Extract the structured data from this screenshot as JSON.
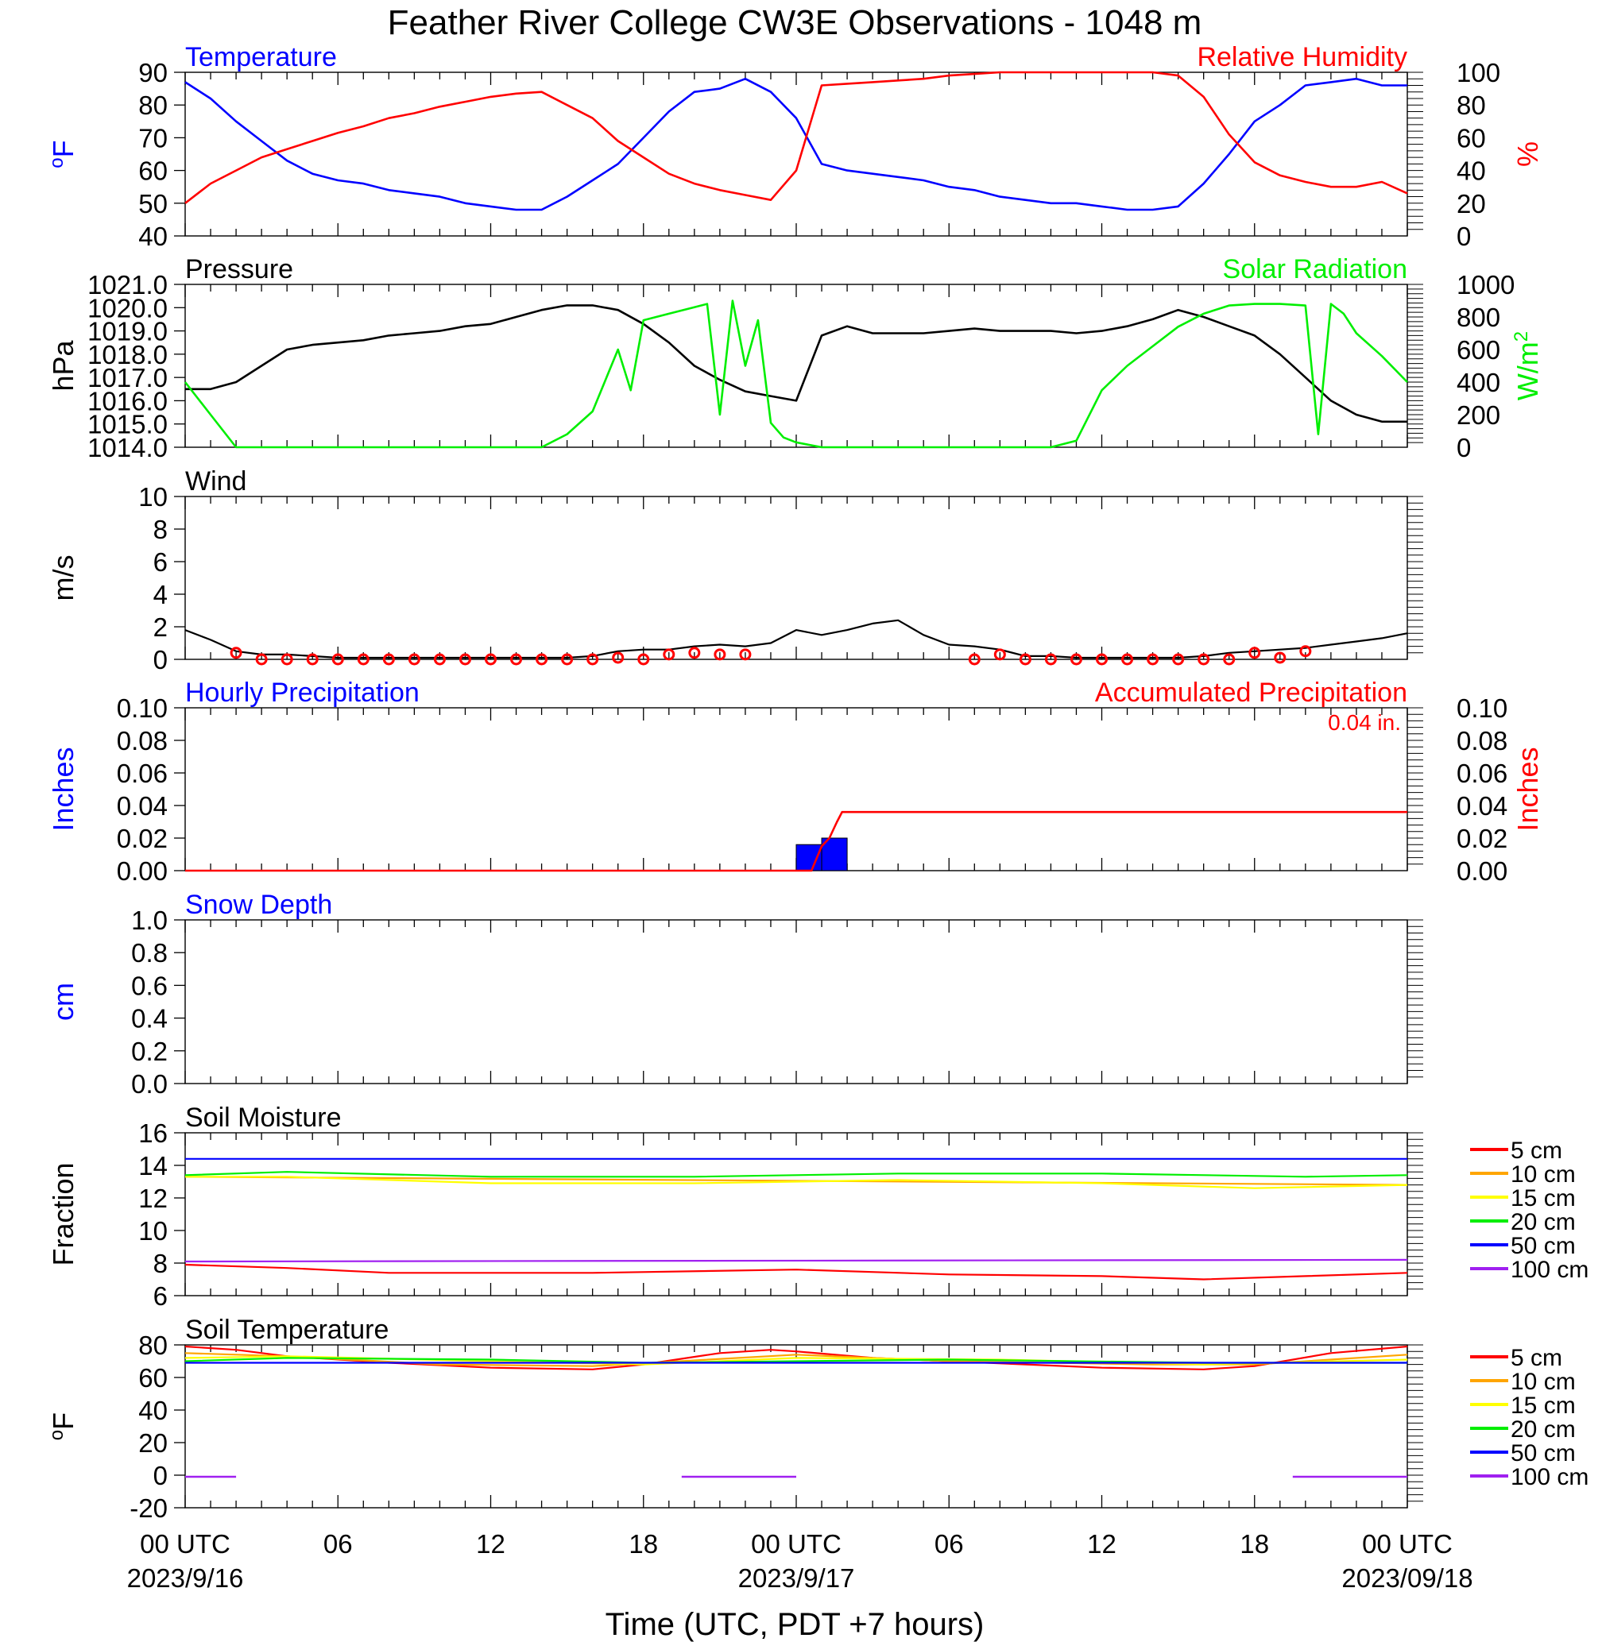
{
  "title": "Feather River College CW3E Observations - 1048 m",
  "xaxis": {
    "label": "Time (UTC, PDT +7 hours)",
    "tick_labels": [
      "00 UTC",
      "06",
      "12",
      "18",
      "00 UTC",
      "06",
      "12",
      "18",
      "00 UTC"
    ],
    "date_labels": [
      "2023/9/16",
      "2023/9/17",
      "2023/09/18"
    ]
  },
  "colors": {
    "blue": "#0000ff",
    "red": "#ff0000",
    "green": "#00ee00",
    "black": "#000000",
    "orange": "#ffa500",
    "yellow": "#ffff00",
    "purple": "#a020f0"
  },
  "soil_legend": [
    "5 cm",
    "10 cm",
    "15 cm",
    "20 cm",
    "50 cm",
    "100 cm"
  ],
  "chart_data": [
    {
      "type": "line",
      "title_left": "Temperature",
      "title_right": "Relative Humidity",
      "ylabel_left": "oF",
      "ylabel_right": "%",
      "ylim_left": [
        40,
        90
      ],
      "ylim_right": [
        0,
        100
      ],
      "yticks_left": [
        "40",
        "50",
        "60",
        "70",
        "80",
        "90"
      ],
      "yticks_right": [
        "0",
        "20",
        "40",
        "60",
        "80",
        "100"
      ],
      "xlim_hours": [
        0,
        48
      ],
      "series": [
        {
          "name": "Temperature",
          "axis": "left",
          "color": "blue",
          "x": [
            0,
            1,
            2,
            3,
            4,
            5,
            6,
            7,
            8,
            9,
            10,
            11,
            12,
            13,
            14,
            15,
            16,
            17,
            18,
            19,
            20,
            21,
            22,
            23,
            24,
            25,
            26,
            27,
            28,
            29,
            30,
            31,
            32,
            33,
            34,
            35,
            36,
            37,
            38,
            39,
            40,
            41,
            42,
            43,
            44,
            45,
            46,
            47,
            48
          ],
          "y": [
            87,
            82,
            75,
            69,
            63,
            59,
            57,
            56,
            54,
            53,
            52,
            50,
            49,
            48,
            48,
            52,
            57,
            62,
            70,
            78,
            84,
            85,
            88,
            84,
            76,
            62,
            60,
            59,
            58,
            57,
            55,
            54,
            52,
            51,
            50,
            50,
            49,
            48,
            48,
            49,
            56,
            65,
            75,
            80,
            86,
            87,
            88,
            86,
            86
          ]
        },
        {
          "name": "Relative Humidity",
          "axis": "right",
          "color": "red",
          "x": [
            0,
            1,
            2,
            3,
            4,
            5,
            6,
            7,
            8,
            9,
            10,
            11,
            12,
            13,
            14,
            15,
            16,
            17,
            18,
            19,
            20,
            21,
            22,
            23,
            24,
            25,
            26,
            27,
            28,
            29,
            30,
            31,
            32,
            33,
            34,
            35,
            36,
            37,
            38,
            39,
            40,
            41,
            42,
            43,
            44,
            45,
            46,
            47,
            48
          ],
          "y": [
            20,
            32,
            40,
            48,
            53,
            58,
            63,
            67,
            72,
            75,
            79,
            82,
            85,
            87,
            88,
            80,
            72,
            58,
            48,
            38,
            32,
            28,
            25,
            22,
            40,
            92,
            93,
            94,
            95,
            96,
            98,
            99,
            100,
            100,
            100,
            100,
            100,
            100,
            100,
            98,
            85,
            62,
            45,
            37,
            33,
            30,
            30,
            33,
            26
          ]
        }
      ]
    },
    {
      "type": "line",
      "title_left": "Pressure",
      "title_right": "Solar Radiation",
      "ylabel_left": "hPa",
      "ylabel_right": "W/m2",
      "ylim_left": [
        1014,
        1021
      ],
      "ylim_right": [
        0,
        1000
      ],
      "yticks_left": [
        "1014.0",
        "1015.0",
        "1016.0",
        "1017.0",
        "1018.0",
        "1019.0",
        "1020.0",
        "1021.0"
      ],
      "yticks_right": [
        "0",
        "200",
        "400",
        "600",
        "800",
        "1000"
      ],
      "series": [
        {
          "name": "Pressure",
          "axis": "left",
          "color": "black",
          "x": [
            0,
            1,
            2,
            3,
            4,
            5,
            6,
            7,
            8,
            9,
            10,
            11,
            12,
            13,
            14,
            15,
            16,
            17,
            18,
            19,
            20,
            21,
            22,
            23,
            24,
            25,
            26,
            27,
            28,
            29,
            30,
            31,
            32,
            33,
            34,
            35,
            36,
            37,
            38,
            39,
            40,
            41,
            42,
            43,
            44,
            45,
            46,
            47,
            48
          ],
          "y": [
            1016.5,
            1016.5,
            1016.8,
            1017.5,
            1018.2,
            1018.4,
            1018.5,
            1018.6,
            1018.8,
            1018.9,
            1019.0,
            1019.2,
            1019.3,
            1019.6,
            1019.9,
            1020.1,
            1020.1,
            1019.9,
            1019.3,
            1018.5,
            1017.5,
            1016.9,
            1016.4,
            1016.2,
            1016.0,
            1018.8,
            1019.2,
            1018.9,
            1018.9,
            1018.9,
            1019.0,
            1019.1,
            1019.0,
            1019.0,
            1019.0,
            1018.9,
            1019.0,
            1019.2,
            1019.5,
            1019.9,
            1019.6,
            1019.2,
            1018.8,
            1018.0,
            1017.0,
            1016.0,
            1015.4,
            1015.1,
            1015.1
          ]
        },
        {
          "name": "Solar Radiation",
          "axis": "right",
          "color": "green",
          "x": [
            0,
            1,
            2,
            3,
            4,
            5,
            6,
            7,
            8,
            9,
            10,
            11,
            12,
            13,
            14,
            15,
            16,
            17,
            17.5,
            18,
            19,
            20,
            20.5,
            21,
            21.5,
            22,
            22.5,
            23,
            23.5,
            24,
            25,
            26,
            27,
            28,
            29,
            30,
            31,
            32,
            33,
            34,
            35,
            36,
            37,
            38,
            39,
            40,
            41,
            42,
            43,
            44,
            44.5,
            45,
            45.5,
            46,
            47,
            48
          ],
          "y": [
            400,
            200,
            0,
            0,
            0,
            0,
            0,
            0,
            0,
            0,
            0,
            0,
            0,
            0,
            0,
            80,
            220,
            600,
            350,
            780,
            820,
            860,
            880,
            200,
            900,
            500,
            780,
            150,
            60,
            30,
            0,
            0,
            0,
            0,
            0,
            0,
            0,
            0,
            0,
            0,
            40,
            350,
            500,
            620,
            740,
            820,
            870,
            880,
            880,
            870,
            80,
            880,
            820,
            700,
            560,
            400
          ]
        }
      ]
    },
    {
      "type": "line",
      "title_left": "Wind",
      "ylabel_left": "m/s",
      "ylim_left": [
        0,
        10
      ],
      "yticks_left": [
        "0",
        "2",
        "4",
        "6",
        "8",
        "10"
      ],
      "series": [
        {
          "name": "Wind",
          "axis": "left",
          "color": "black",
          "x": [
            0,
            1,
            2,
            3,
            4,
            5,
            6,
            7,
            8,
            9,
            10,
            11,
            12,
            13,
            14,
            15,
            16,
            17,
            18,
            19,
            20,
            21,
            22,
            23,
            24,
            25,
            26,
            27,
            28,
            29,
            30,
            31,
            32,
            33,
            34,
            35,
            36,
            37,
            38,
            39,
            40,
            41,
            42,
            43,
            44,
            45,
            46,
            47,
            48
          ],
          "y": [
            1.8,
            1.2,
            0.5,
            0.3,
            0.3,
            0.2,
            0.1,
            0.1,
            0.1,
            0.1,
            0.1,
            0.1,
            0.1,
            0.1,
            0.1,
            0.1,
            0.2,
            0.5,
            0.6,
            0.6,
            0.8,
            0.9,
            0.8,
            1.0,
            1.8,
            1.5,
            1.8,
            2.2,
            2.4,
            1.5,
            0.9,
            0.8,
            0.6,
            0.2,
            0.2,
            0.1,
            0.1,
            0.1,
            0.1,
            0.1,
            0.2,
            0.4,
            0.5,
            0.6,
            0.7,
            0.9,
            1.1,
            1.3,
            1.6
          ]
        },
        {
          "name": "Wind direction markers",
          "axis": "left",
          "color": "red",
          "x": [
            2,
            3,
            4,
            5,
            6,
            7,
            8,
            9,
            10,
            11,
            12,
            13,
            14,
            15,
            16,
            17,
            18,
            19,
            20,
            21,
            22,
            31,
            32,
            33,
            34,
            35,
            36,
            37,
            38,
            39,
            40,
            41,
            42,
            43,
            44
          ],
          "y": [
            0.4,
            0,
            0,
            0,
            0,
            0,
            0,
            0,
            0,
            0,
            0,
            0,
            0,
            0,
            0,
            0.1,
            0,
            0.3,
            0.4,
            0.3,
            0.3,
            0,
            0.3,
            0,
            0,
            0,
            0,
            0,
            0,
            0,
            0,
            0,
            0.4,
            0.1,
            0.5
          ]
        }
      ]
    },
    {
      "type": "bar",
      "title_left": "Hourly Precipitation",
      "title_right": "Accumulated Precipitation",
      "annotation": "0.04 in.",
      "ylabel_left": "Inches",
      "ylabel_right": "Inches",
      "ylim_left": [
        0,
        0.1
      ],
      "ylim_right": [
        0,
        0.1
      ],
      "yticks_left": [
        "0.00",
        "0.02",
        "0.04",
        "0.06",
        "0.08",
        "0.10"
      ],
      "yticks_right": [
        "0.00",
        "0.02",
        "0.04",
        "0.06",
        "0.08",
        "0.10"
      ],
      "bars": [
        {
          "name": "Hourly Precipitation",
          "color": "blue",
          "start_hour": 24,
          "end_hour": 25,
          "value": 0.016
        },
        {
          "name": "Hourly Precipitation",
          "color": "blue",
          "start_hour": 25,
          "end_hour": 26,
          "value": 0.02
        }
      ],
      "series": [
        {
          "name": "Accumulated Precipitation",
          "axis": "right",
          "color": "red",
          "x": [
            0,
            24.6,
            25.0,
            25.3,
            25.6,
            25.8,
            48
          ],
          "y": [
            0,
            0,
            0.015,
            0.02,
            0.03,
            0.036,
            0.036
          ]
        }
      ]
    },
    {
      "type": "line",
      "title_left": "Snow Depth",
      "ylabel_left": "cm",
      "ylim_left": [
        0,
        1
      ],
      "yticks_left": [
        "0.0",
        "0.2",
        "0.4",
        "0.6",
        "0.8",
        "1.0"
      ],
      "series": []
    },
    {
      "type": "line",
      "title_left": "Soil Moisture",
      "ylabel_left": "Fraction",
      "ylim_left": [
        6,
        16
      ],
      "yticks_left": [
        "6",
        "8",
        "10",
        "12",
        "14",
        "16"
      ],
      "series": [
        {
          "name": "5 cm",
          "color": "red",
          "x": [
            0,
            4,
            8,
            16,
            24,
            30,
            36,
            40,
            44,
            48
          ],
          "y": [
            7.9,
            7.7,
            7.4,
            7.4,
            7.6,
            7.3,
            7.2,
            7.0,
            7.2,
            7.4
          ]
        },
        {
          "name": "10 cm",
          "color": "orange",
          "x": [
            0,
            48
          ],
          "y": [
            13.3,
            12.8
          ]
        },
        {
          "name": "15 cm",
          "color": "yellow",
          "x": [
            0,
            4,
            12,
            20,
            28,
            36,
            42,
            48
          ],
          "y": [
            13.3,
            13.3,
            12.9,
            12.9,
            13.1,
            12.9,
            12.6,
            12.8
          ]
        },
        {
          "name": "20 cm",
          "color": "green",
          "x": [
            0,
            4,
            12,
            20,
            28,
            36,
            44,
            48
          ],
          "y": [
            13.4,
            13.6,
            13.3,
            13.3,
            13.5,
            13.5,
            13.3,
            13.4
          ]
        },
        {
          "name": "50 cm",
          "color": "blue",
          "x": [
            0,
            48
          ],
          "y": [
            14.4,
            14.4
          ]
        },
        {
          "name": "100 cm",
          "color": "purple",
          "x": [
            0,
            48
          ],
          "y": [
            8.1,
            8.2
          ]
        }
      ]
    },
    {
      "type": "line",
      "title_left": "Soil Temperature",
      "ylabel_left": "oF",
      "ylim_left": [
        -20,
        80
      ],
      "yticks_left": [
        "-20",
        "0",
        "20",
        "40",
        "60",
        "80"
      ],
      "series": [
        {
          "name": "5 cm",
          "color": "red",
          "x": [
            0,
            2,
            4,
            8,
            12,
            16,
            18,
            21,
            23,
            24,
            27,
            30,
            36,
            40,
            42,
            45,
            48
          ],
          "y": [
            79,
            77,
            73,
            69,
            66,
            65,
            68,
            75,
            77,
            76,
            72,
            70,
            66,
            65,
            67,
            75,
            79
          ]
        },
        {
          "name": "10 cm",
          "color": "orange",
          "x": [
            0,
            4,
            10,
            16,
            24,
            30,
            38,
            42,
            48
          ],
          "y": [
            75,
            73,
            68,
            67,
            74,
            70,
            68,
            68,
            74
          ]
        },
        {
          "name": "15 cm",
          "color": "yellow",
          "x": [
            0,
            4,
            12,
            18,
            24,
            32,
            40,
            48
          ],
          "y": [
            72,
            73,
            70,
            68,
            72,
            71,
            68,
            71
          ]
        },
        {
          "name": "20 cm",
          "color": "green",
          "x": [
            0,
            4,
            12,
            18,
            24,
            30,
            40,
            48
          ],
          "y": [
            70,
            72,
            71,
            69,
            70,
            71,
            69,
            69
          ]
        },
        {
          "name": "50 cm",
          "color": "blue",
          "x": [
            0,
            48
          ],
          "y": [
            69,
            69
          ]
        },
        {
          "name": "100 cm",
          "color": "purple",
          "segments": [
            [
              2,
              -1
            ],
            [
              19.5,
              -1
            ],
            [
              24,
              -1
            ],
            [
              43.5,
              -1
            ],
            [
              48,
              -1
            ]
          ],
          "x": [
            0,
            2,
            19.5,
            24,
            43.5,
            48
          ],
          "y": [
            -1,
            -1,
            -1,
            -1,
            -1,
            -1
          ]
        }
      ]
    }
  ]
}
